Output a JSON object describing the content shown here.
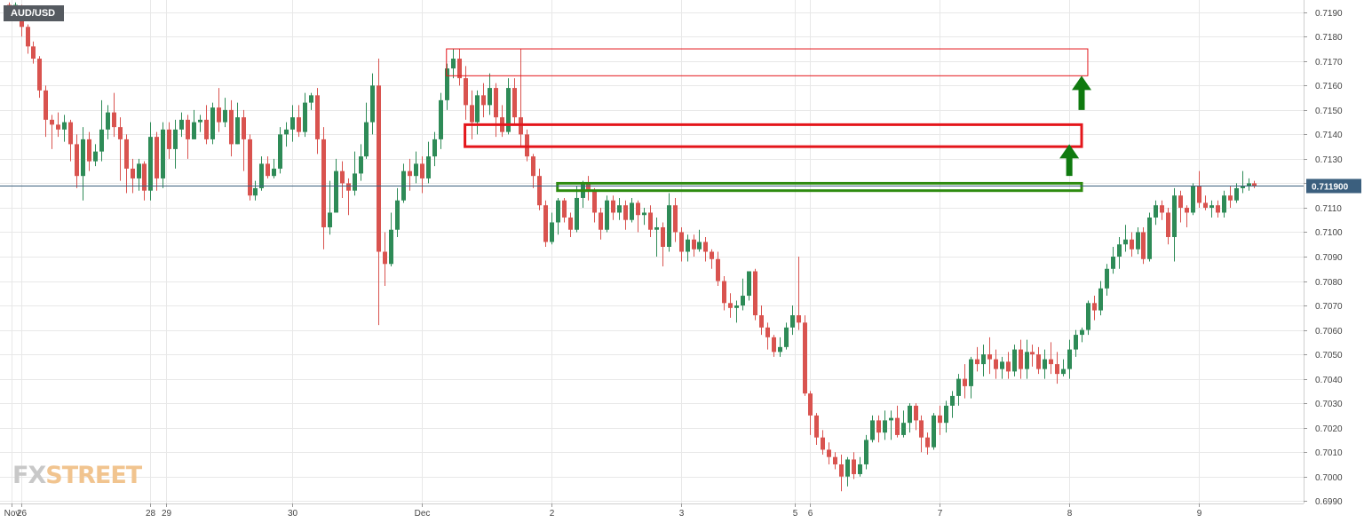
{
  "symbol": "AUD/USD",
  "logo": {
    "part1": "FX",
    "part2": "STREET"
  },
  "colors": {
    "up": "#2e8b57",
    "down": "#d9534f",
    "grid": "#e8e8e8",
    "price_line": "#3b5f7e",
    "zone_red": "#e4161b",
    "zone_green": "#2e8b10",
    "arrow": "#0f7a0f"
  },
  "chart_data": {
    "type": "candlestick",
    "title": "AUD/USD",
    "ylim": [
      0.6989,
      0.7195
    ],
    "y_ticks": [
      "0.7190",
      "0.7180",
      "0.7170",
      "0.7160",
      "0.7150",
      "0.7140",
      "0.7130",
      "0.7120",
      "0.7110",
      "0.7100",
      "0.7090",
      "0.7080",
      "0.7070",
      "0.7060",
      "0.7050",
      "0.7040",
      "0.7030",
      "0.7020",
      "0.7010",
      "0.7000",
      "0.6990"
    ],
    "x_labels": [
      {
        "label": "Nov",
        "x": 0.5
      },
      {
        "label": "26",
        "x": 2
      },
      {
        "label": "28",
        "x": 23
      },
      {
        "label": "29",
        "x": 25.5
      },
      {
        "label": "30",
        "x": 46
      },
      {
        "label": "Dec",
        "x": 67
      },
      {
        "label": "2",
        "x": 88
      },
      {
        "label": "3",
        "x": 109
      },
      {
        "label": "5",
        "x": 127.5
      },
      {
        "label": "6",
        "x": 130
      },
      {
        "label": "7",
        "x": 151
      },
      {
        "label": "8",
        "x": 172
      },
      {
        "label": "9",
        "x": 193
      }
    ],
    "x_range": [
      -1.4,
      210
    ],
    "current_price": {
      "value": 0.7119,
      "label": "0.711900"
    },
    "grid": true,
    "candles": [
      [
        0.7193,
        0.7191,
        0.7194,
        0.7188
      ],
      [
        0.7191,
        0.7193,
        0.7194,
        0.7189
      ],
      [
        0.7192,
        0.7184,
        0.7193,
        0.718
      ],
      [
        0.7184,
        0.7176,
        0.7185,
        0.7173
      ],
      [
        0.7176,
        0.7171,
        0.7178,
        0.7169
      ],
      [
        0.7171,
        0.7158,
        0.7172,
        0.7155
      ],
      [
        0.7158,
        0.7146,
        0.716,
        0.7139
      ],
      [
        0.7146,
        0.7144,
        0.7148,
        0.7134
      ],
      [
        0.7144,
        0.7142,
        0.7149,
        0.7139
      ],
      [
        0.7142,
        0.7145,
        0.7148,
        0.7137
      ],
      [
        0.7145,
        0.7136,
        0.7146,
        0.7129
      ],
      [
        0.7136,
        0.7123,
        0.714,
        0.7118
      ],
      [
        0.7123,
        0.7138,
        0.7143,
        0.7113
      ],
      [
        0.7138,
        0.7129,
        0.7141,
        0.7125
      ],
      [
        0.7129,
        0.7133,
        0.7136,
        0.7127
      ],
      [
        0.7133,
        0.7142,
        0.7154,
        0.7129
      ],
      [
        0.7142,
        0.7149,
        0.7152,
        0.7138
      ],
      [
        0.7149,
        0.7143,
        0.7157,
        0.7139
      ],
      [
        0.7143,
        0.7138,
        0.7147,
        0.7121
      ],
      [
        0.7138,
        0.7126,
        0.714,
        0.7116
      ],
      [
        0.7126,
        0.7122,
        0.713,
        0.7116
      ],
      [
        0.7122,
        0.7128,
        0.713,
        0.7117
      ],
      [
        0.7128,
        0.7117,
        0.7129,
        0.7113
      ],
      [
        0.7117,
        0.7139,
        0.7145,
        0.7113
      ],
      [
        0.7139,
        0.7122,
        0.7141,
        0.7117
      ],
      [
        0.7122,
        0.7142,
        0.7145,
        0.7118
      ],
      [
        0.7142,
        0.7134,
        0.7145,
        0.713
      ],
      [
        0.7134,
        0.7142,
        0.7146,
        0.7126
      ],
      [
        0.7142,
        0.7146,
        0.7149,
        0.7139
      ],
      [
        0.7146,
        0.7138,
        0.7148,
        0.713
      ],
      [
        0.7138,
        0.7145,
        0.715,
        0.7138
      ],
      [
        0.7145,
        0.7146,
        0.7148,
        0.7141
      ],
      [
        0.7146,
        0.7138,
        0.7152,
        0.7136
      ],
      [
        0.7138,
        0.7151,
        0.7153,
        0.7136
      ],
      [
        0.7151,
        0.7145,
        0.7159,
        0.7141
      ],
      [
        0.7145,
        0.715,
        0.7155,
        0.7143
      ],
      [
        0.715,
        0.7136,
        0.7154,
        0.7131
      ],
      [
        0.7136,
        0.7147,
        0.7153,
        0.7136
      ],
      [
        0.7147,
        0.7138,
        0.715,
        0.7125
      ],
      [
        0.7138,
        0.7115,
        0.714,
        0.7113
      ],
      [
        0.7115,
        0.7118,
        0.7121,
        0.7113
      ],
      [
        0.7118,
        0.7128,
        0.7131,
        0.7117
      ],
      [
        0.7128,
        0.7123,
        0.7131,
        0.7122
      ],
      [
        0.7123,
        0.7126,
        0.713,
        0.7122
      ],
      [
        0.7126,
        0.714,
        0.7143,
        0.7124
      ],
      [
        0.714,
        0.7142,
        0.7145,
        0.7135
      ],
      [
        0.7142,
        0.7147,
        0.7152,
        0.7137
      ],
      [
        0.7147,
        0.7141,
        0.7152,
        0.7139
      ],
      [
        0.7141,
        0.7153,
        0.7157,
        0.7139
      ],
      [
        0.7153,
        0.7156,
        0.7157,
        0.715
      ],
      [
        0.7156,
        0.7138,
        0.7159,
        0.7132
      ],
      [
        0.7138,
        0.7102,
        0.7143,
        0.7093
      ],
      [
        0.7102,
        0.7108,
        0.7121,
        0.7099
      ],
      [
        0.7108,
        0.7125,
        0.713,
        0.7108
      ],
      [
        0.7125,
        0.712,
        0.7129,
        0.7114
      ],
      [
        0.712,
        0.7117,
        0.7122,
        0.7107
      ],
      [
        0.7117,
        0.7124,
        0.7133,
        0.7115
      ],
      [
        0.7124,
        0.7131,
        0.7136,
        0.7121
      ],
      [
        0.7131,
        0.7145,
        0.7153,
        0.713
      ],
      [
        0.7145,
        0.716,
        0.7165,
        0.714
      ],
      [
        0.716,
        0.7092,
        0.7171,
        0.7062
      ],
      [
        0.7092,
        0.7087,
        0.71,
        0.7078
      ],
      [
        0.7087,
        0.7101,
        0.7108,
        0.7086
      ],
      [
        0.7101,
        0.7113,
        0.7118,
        0.7098
      ],
      [
        0.7113,
        0.7125,
        0.7128,
        0.7112
      ],
      [
        0.7125,
        0.7123,
        0.713,
        0.7117
      ],
      [
        0.7123,
        0.7128,
        0.7133,
        0.712
      ],
      [
        0.7128,
        0.7122,
        0.7131,
        0.7116
      ],
      [
        0.7122,
        0.7131,
        0.7137,
        0.712
      ],
      [
        0.7131,
        0.7138,
        0.7141,
        0.7127
      ],
      [
        0.7138,
        0.7154,
        0.7157,
        0.7134
      ],
      [
        0.7154,
        0.7167,
        0.7169,
        0.715
      ],
      [
        0.7167,
        0.7171,
        0.7175,
        0.7163
      ],
      [
        0.7171,
        0.7163,
        0.7175,
        0.716
      ],
      [
        0.7163,
        0.7152,
        0.7168,
        0.7146
      ],
      [
        0.7152,
        0.7145,
        0.7158,
        0.7138
      ],
      [
        0.7145,
        0.7156,
        0.7158,
        0.714
      ],
      [
        0.7156,
        0.7152,
        0.7161,
        0.7147
      ],
      [
        0.7152,
        0.7159,
        0.7165,
        0.7148
      ],
      [
        0.7159,
        0.7147,
        0.7161,
        0.7139
      ],
      [
        0.7147,
        0.7141,
        0.7152,
        0.7139
      ],
      [
        0.7141,
        0.7159,
        0.7163,
        0.714
      ],
      [
        0.7159,
        0.7147,
        0.7163,
        0.7144
      ],
      [
        0.7147,
        0.714,
        0.7175,
        0.7135
      ],
      [
        0.714,
        0.7131,
        0.7142,
        0.7129
      ],
      [
        0.7131,
        0.7123,
        0.7132,
        0.7118
      ],
      [
        0.7123,
        0.7111,
        0.7126,
        0.7109
      ],
      [
        0.7111,
        0.7096,
        0.7113,
        0.7094
      ],
      [
        0.7096,
        0.7104,
        0.7108,
        0.7095
      ],
      [
        0.7104,
        0.7113,
        0.7114,
        0.7099
      ],
      [
        0.7113,
        0.7106,
        0.7114,
        0.7104
      ],
      [
        0.7106,
        0.7101,
        0.7108,
        0.7098
      ],
      [
        0.7101,
        0.7114,
        0.7119,
        0.71
      ],
      [
        0.7114,
        0.712,
        0.7121,
        0.711
      ],
      [
        0.712,
        0.7117,
        0.7123,
        0.7113
      ],
      [
        0.7117,
        0.7108,
        0.7118,
        0.7104
      ],
      [
        0.7108,
        0.7101,
        0.711,
        0.7097
      ],
      [
        0.7101,
        0.7113,
        0.7115,
        0.71
      ],
      [
        0.7113,
        0.7108,
        0.7115,
        0.7105
      ],
      [
        0.7108,
        0.7111,
        0.7114,
        0.7105
      ],
      [
        0.7111,
        0.7105,
        0.7113,
        0.7101
      ],
      [
        0.7105,
        0.7112,
        0.7114,
        0.7104
      ],
      [
        0.7112,
        0.7107,
        0.7113,
        0.71
      ],
      [
        0.7107,
        0.7108,
        0.711,
        0.7103
      ],
      [
        0.7108,
        0.7101,
        0.7111,
        0.7098
      ],
      [
        0.7101,
        0.7102,
        0.7106,
        0.709
      ],
      [
        0.7102,
        0.7094,
        0.7104,
        0.7086
      ],
      [
        0.7094,
        0.7111,
        0.7116,
        0.7092
      ],
      [
        0.7111,
        0.71,
        0.7114,
        0.7096
      ],
      [
        0.71,
        0.7092,
        0.7102,
        0.7088
      ],
      [
        0.7092,
        0.7097,
        0.7099,
        0.7088
      ],
      [
        0.7097,
        0.7093,
        0.7099,
        0.709
      ],
      [
        0.7093,
        0.7096,
        0.7101,
        0.7092
      ],
      [
        0.7096,
        0.7092,
        0.7098,
        0.7088
      ],
      [
        0.7092,
        0.7089,
        0.7093,
        0.7085
      ],
      [
        0.7089,
        0.708,
        0.7092,
        0.7078
      ],
      [
        0.708,
        0.7071,
        0.7082,
        0.7068
      ],
      [
        0.7071,
        0.7069,
        0.7075,
        0.7065
      ],
      [
        0.7069,
        0.707,
        0.7072,
        0.7063
      ],
      [
        0.707,
        0.7074,
        0.7081,
        0.7068
      ],
      [
        0.7074,
        0.7084,
        0.7084,
        0.7072
      ],
      [
        0.7084,
        0.7066,
        0.7085,
        0.7064
      ],
      [
        0.7066,
        0.7061,
        0.707,
        0.7058
      ],
      [
        0.7061,
        0.7057,
        0.7063,
        0.7052
      ],
      [
        0.7057,
        0.7051,
        0.7058,
        0.7049
      ],
      [
        0.7051,
        0.7053,
        0.7057,
        0.7049
      ],
      [
        0.7053,
        0.7061,
        0.7063,
        0.7052
      ],
      [
        0.7061,
        0.7066,
        0.707,
        0.7058
      ],
      [
        0.7066,
        0.7063,
        0.709,
        0.706
      ],
      [
        0.7063,
        0.7034,
        0.7066,
        0.7033
      ],
      [
        0.7034,
        0.7025,
        0.7035,
        0.7017
      ],
      [
        0.7025,
        0.7016,
        0.7026,
        0.7013
      ],
      [
        0.7016,
        0.7011,
        0.7019,
        0.7009
      ],
      [
        0.7011,
        0.7008,
        0.7014,
        0.7005
      ],
      [
        0.7008,
        0.7005,
        0.701,
        0.7003
      ],
      [
        0.7005,
        0.7,
        0.7009,
        0.6994
      ],
      [
        0.7,
        0.7007,
        0.7008,
        0.6996
      ],
      [
        0.7007,
        0.7001,
        0.701,
        0.6999
      ],
      [
        0.7001,
        0.7005,
        0.7008,
        0.7
      ],
      [
        0.7005,
        0.7015,
        0.7017,
        0.7003
      ],
      [
        0.7015,
        0.7023,
        0.7025,
        0.7014
      ],
      [
        0.7023,
        0.7018,
        0.7025,
        0.7014
      ],
      [
        0.7018,
        0.7023,
        0.7027,
        0.7015
      ],
      [
        0.7023,
        0.7024,
        0.7027,
        0.7015
      ],
      [
        0.7024,
        0.7017,
        0.7029,
        0.7016
      ],
      [
        0.7017,
        0.7022,
        0.7027,
        0.7016
      ],
      [
        0.7022,
        0.7029,
        0.703,
        0.7018
      ],
      [
        0.7029,
        0.7023,
        0.703,
        0.7019
      ],
      [
        0.7023,
        0.7016,
        0.7025,
        0.701
      ],
      [
        0.7016,
        0.7012,
        0.7018,
        0.7009
      ],
      [
        0.7012,
        0.7025,
        0.7026,
        0.7011
      ],
      [
        0.7025,
        0.7022,
        0.7029,
        0.7017
      ],
      [
        0.7022,
        0.7029,
        0.7031,
        0.7018
      ],
      [
        0.7029,
        0.7033,
        0.7035,
        0.7024
      ],
      [
        0.7033,
        0.704,
        0.7042,
        0.7029
      ],
      [
        0.704,
        0.7037,
        0.7046,
        0.7032
      ],
      [
        0.7037,
        0.7048,
        0.7049,
        0.7032
      ],
      [
        0.7048,
        0.7046,
        0.7053,
        0.7043
      ],
      [
        0.7046,
        0.705,
        0.7054,
        0.7041
      ],
      [
        0.705,
        0.7048,
        0.7057,
        0.7042
      ],
      [
        0.7048,
        0.7044,
        0.7052,
        0.704
      ],
      [
        0.7044,
        0.7047,
        0.7049,
        0.704
      ],
      [
        0.7047,
        0.7043,
        0.7051,
        0.704
      ],
      [
        0.7043,
        0.7052,
        0.7054,
        0.7041
      ],
      [
        0.7052,
        0.7044,
        0.7056,
        0.704
      ],
      [
        0.7044,
        0.7051,
        0.7056,
        0.704
      ],
      [
        0.7051,
        0.705,
        0.7054,
        0.7045
      ],
      [
        0.705,
        0.7044,
        0.7053,
        0.7042
      ],
      [
        0.7044,
        0.7048,
        0.7052,
        0.704
      ],
      [
        0.7048,
        0.7046,
        0.7055,
        0.7042
      ],
      [
        0.7046,
        0.7042,
        0.7051,
        0.7038
      ],
      [
        0.7042,
        0.7044,
        0.7048,
        0.7041
      ],
      [
        0.7044,
        0.7052,
        0.7056,
        0.704
      ],
      [
        0.7052,
        0.7058,
        0.706,
        0.7049
      ],
      [
        0.7058,
        0.706,
        0.7061,
        0.7055
      ],
      [
        0.706,
        0.7071,
        0.7072,
        0.7058
      ],
      [
        0.7071,
        0.7068,
        0.7074,
        0.7064
      ],
      [
        0.7068,
        0.7077,
        0.708,
        0.7066
      ],
      [
        0.7077,
        0.7085,
        0.7087,
        0.7074
      ],
      [
        0.7085,
        0.709,
        0.7094,
        0.7083
      ],
      [
        0.709,
        0.7095,
        0.7098,
        0.7085
      ],
      [
        0.7095,
        0.7097,
        0.7103,
        0.7092
      ],
      [
        0.7097,
        0.7093,
        0.71,
        0.709
      ],
      [
        0.7093,
        0.71,
        0.7102,
        0.7091
      ],
      [
        0.71,
        0.7089,
        0.7102,
        0.7087
      ],
      [
        0.7089,
        0.7106,
        0.7108,
        0.7088
      ],
      [
        0.7106,
        0.7111,
        0.7113,
        0.7103
      ],
      [
        0.7111,
        0.7108,
        0.7113,
        0.7105
      ],
      [
        0.7108,
        0.7098,
        0.711,
        0.7095
      ],
      [
        0.7098,
        0.7115,
        0.7118,
        0.7088
      ],
      [
        0.7115,
        0.711,
        0.7117,
        0.7104
      ],
      [
        0.711,
        0.7108,
        0.7111,
        0.7102
      ],
      [
        0.7108,
        0.7119,
        0.712,
        0.7107
      ],
      [
        0.7119,
        0.7112,
        0.7125,
        0.711
      ],
      [
        0.7112,
        0.711,
        0.7115,
        0.7109
      ],
      [
        0.711,
        0.7111,
        0.7113,
        0.7106
      ],
      [
        0.7111,
        0.7108,
        0.7113,
        0.7106
      ],
      [
        0.7108,
        0.7115,
        0.7117,
        0.7106
      ],
      [
        0.7115,
        0.7113,
        0.7119,
        0.711
      ],
      [
        0.7113,
        0.7118,
        0.712,
        0.7112
      ],
      [
        0.7118,
        0.7119,
        0.7125,
        0.7116
      ],
      [
        0.7119,
        0.712,
        0.7122,
        0.7117
      ],
      [
        0.712,
        0.7119,
        0.7121,
        0.7118
      ]
    ],
    "zones": [
      {
        "color": "red",
        "weight": "thin",
        "x_start": 71,
        "x_end": 175,
        "y_top": 0.7175,
        "y_bottom": 0.7164
      },
      {
        "color": "red",
        "weight": "thick",
        "x_start": 74,
        "x_end": 174,
        "y_top": 0.7144,
        "y_bottom": 0.7135
      },
      {
        "color": "green",
        "weight": "thick",
        "x_start": 89,
        "x_end": 174,
        "y_top": 0.712,
        "y_bottom": 0.7117
      }
    ],
    "arrows": [
      {
        "x": 172,
        "y_from": 0.7123,
        "y_to": 0.7136
      },
      {
        "x": 174,
        "y_from": 0.715,
        "y_to": 0.7164
      }
    ]
  }
}
